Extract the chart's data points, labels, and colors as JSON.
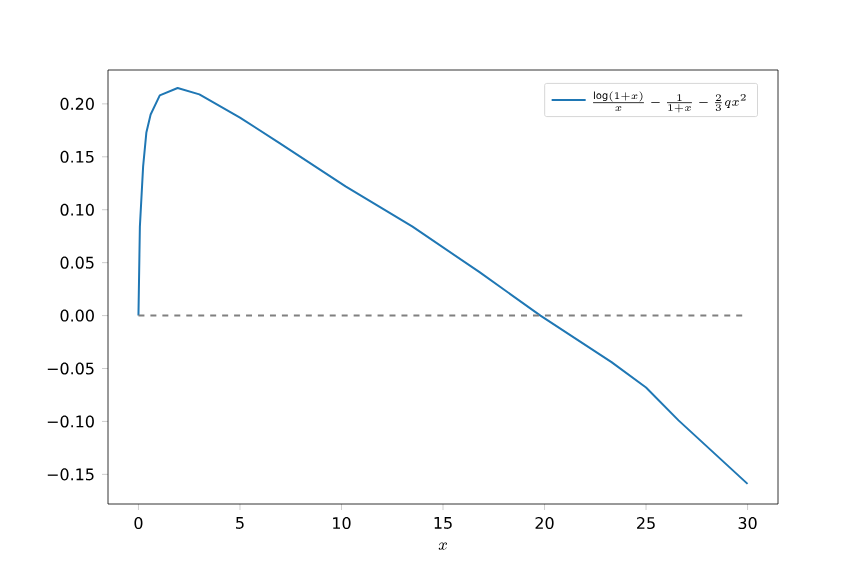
{
  "chart_data": {
    "type": "line",
    "xlabel": "x",
    "x": [
      0,
      0.07,
      0.23,
      0.39,
      0.6,
      1.05,
      1.93,
      3,
      5,
      6.95,
      10.2,
      13.5,
      16.8,
      19.8,
      23.3,
      25,
      26.6,
      30
    ],
    "series": [
      {
        "name": "\\frac{\\log(1+x)}{x} - \\frac{1}{1+x} - \\frac{2}{3}qx^2",
        "color": "#1f77b4",
        "values": [
          0,
          0.084,
          0.141,
          0.173,
          0.19,
          0.208,
          0.215,
          0.209,
          0.187,
          0.163,
          0.122,
          0.084,
          0.041,
          0.0,
          -0.044,
          -0.068,
          -0.099,
          -0.159
        ]
      }
    ],
    "xlim": [
      -1.5,
      31.5
    ],
    "ylim": [
      -0.178,
      0.232
    ],
    "xticks": [
      0,
      5,
      10,
      15,
      20,
      25,
      30
    ],
    "yticks": [
      {
        "value": -0.15,
        "label": "−0.15"
      },
      {
        "value": -0.1,
        "label": "−0.10"
      },
      {
        "value": -0.05,
        "label": "−0.05"
      },
      {
        "value": 0,
        "label": "0.00"
      },
      {
        "value": 0.05,
        "label": "0.05"
      },
      {
        "value": 0.1,
        "label": "0.10"
      },
      {
        "value": 0.15,
        "label": "0.15"
      },
      {
        "value": 0.2,
        "label": "0.20"
      }
    ],
    "ref_lines": [
      {
        "axis": "y",
        "value": 0,
        "color": "#808080",
        "line_style": "dashed"
      }
    ],
    "legend": "top right"
  }
}
